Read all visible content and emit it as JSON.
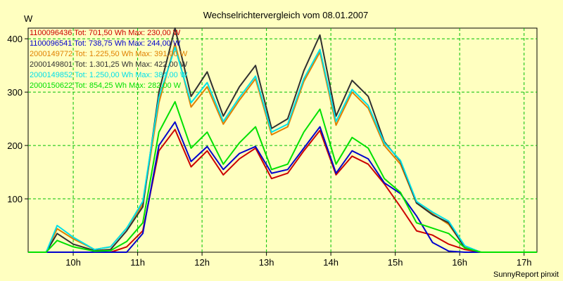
{
  "chart_data": {
    "type": "line",
    "title": "Wechselrichtervergleich vom 08.01.2007",
    "y_unit": "W",
    "credit": "SunnyReport pinxit",
    "grid": true,
    "grid_color": "#00c000",
    "background_color": "#ffffc0",
    "legend_placement": "top-left",
    "xlim": [
      9.3,
      17.2
    ],
    "ylim": [
      0,
      420
    ],
    "x_ticks": [
      10,
      11,
      12,
      13,
      14,
      15,
      16,
      17
    ],
    "x_tick_labels": [
      "10h",
      "11h",
      "12h",
      "13h",
      "14h",
      "15h",
      "16h",
      "17h"
    ],
    "y_ticks": [
      100,
      200,
      300,
      400
    ],
    "y_tick_labels": [
      "100",
      "200",
      "300",
      "400"
    ],
    "x": [
      9.3,
      9.58,
      9.75,
      10.0,
      10.33,
      10.58,
      10.83,
      11.08,
      11.33,
      11.58,
      11.83,
      12.08,
      12.33,
      12.58,
      12.83,
      13.08,
      13.33,
      13.58,
      13.83,
      14.08,
      14.33,
      14.58,
      14.83,
      15.08,
      15.33,
      15.58,
      15.83,
      16.08,
      16.33,
      16.58,
      17.0,
      17.2
    ],
    "series": [
      {
        "name": "1100096436",
        "legend_text": "1100096436 Tot: 701,50 Wh Max: 230,00 W",
        "color": "#cc0000",
        "values": [
          0,
          0,
          0,
          0,
          0,
          0,
          10,
          40,
          190,
          230,
          160,
          190,
          145,
          175,
          195,
          138,
          148,
          190,
          228,
          145,
          180,
          165,
          128,
          85,
          40,
          32,
          15,
          5,
          0,
          0,
          0,
          0
        ]
      },
      {
        "name": "1100096541",
        "legend_text": "1100096541 Tot: 738,75 Wh Max: 244,00 W",
        "color": "#0000cc",
        "values": [
          0,
          0,
          0,
          0,
          0,
          0,
          0,
          35,
          200,
          244,
          170,
          198,
          155,
          185,
          198,
          148,
          155,
          195,
          235,
          148,
          190,
          175,
          130,
          110,
          68,
          18,
          2,
          0,
          0,
          0,
          0,
          0
        ]
      },
      {
        "name": "2000149772",
        "legend_text": "2000149772 Tot: 1.225,50 Wh Max: 391,00 W",
        "color": "#e08000",
        "values": [
          0,
          0,
          44,
          25,
          5,
          10,
          45,
          90,
          280,
          391,
          272,
          310,
          240,
          285,
          325,
          220,
          235,
          320,
          375,
          238,
          300,
          270,
          200,
          165,
          92,
          72,
          52,
          10,
          0,
          0,
          0,
          0
        ]
      },
      {
        "name": "2000149801",
        "legend_text": "2000149801 Tot: 1.301,25 Wh Max: 422,00 W",
        "color": "#303030",
        "values": [
          0,
          0,
          35,
          15,
          3,
          5,
          40,
          85,
          300,
          422,
          292,
          338,
          255,
          310,
          350,
          232,
          250,
          340,
          407,
          255,
          322,
          292,
          207,
          170,
          92,
          70,
          55,
          8,
          0,
          0,
          0,
          0
        ]
      },
      {
        "name": "2000149852",
        "legend_text": "2000149852 Tot: 1.250,00 Wh Max: 384,00 W",
        "color": "#00e0e8",
        "values": [
          0,
          0,
          50,
          28,
          5,
          10,
          45,
          95,
          290,
          384,
          280,
          318,
          245,
          290,
          330,
          225,
          240,
          325,
          380,
          245,
          305,
          275,
          205,
          172,
          95,
          75,
          58,
          12,
          0,
          0,
          0,
          0
        ]
      },
      {
        "name": "2000150622",
        "legend_text": "2000150622 Tot: 854,25 Wh Max: 282,00 W",
        "color": "#00e000",
        "values": [
          0,
          0,
          22,
          10,
          2,
          3,
          20,
          55,
          225,
          282,
          195,
          225,
          165,
          205,
          235,
          155,
          165,
          225,
          268,
          165,
          215,
          195,
          138,
          112,
          55,
          45,
          35,
          8,
          0,
          0,
          0,
          0
        ]
      }
    ]
  }
}
